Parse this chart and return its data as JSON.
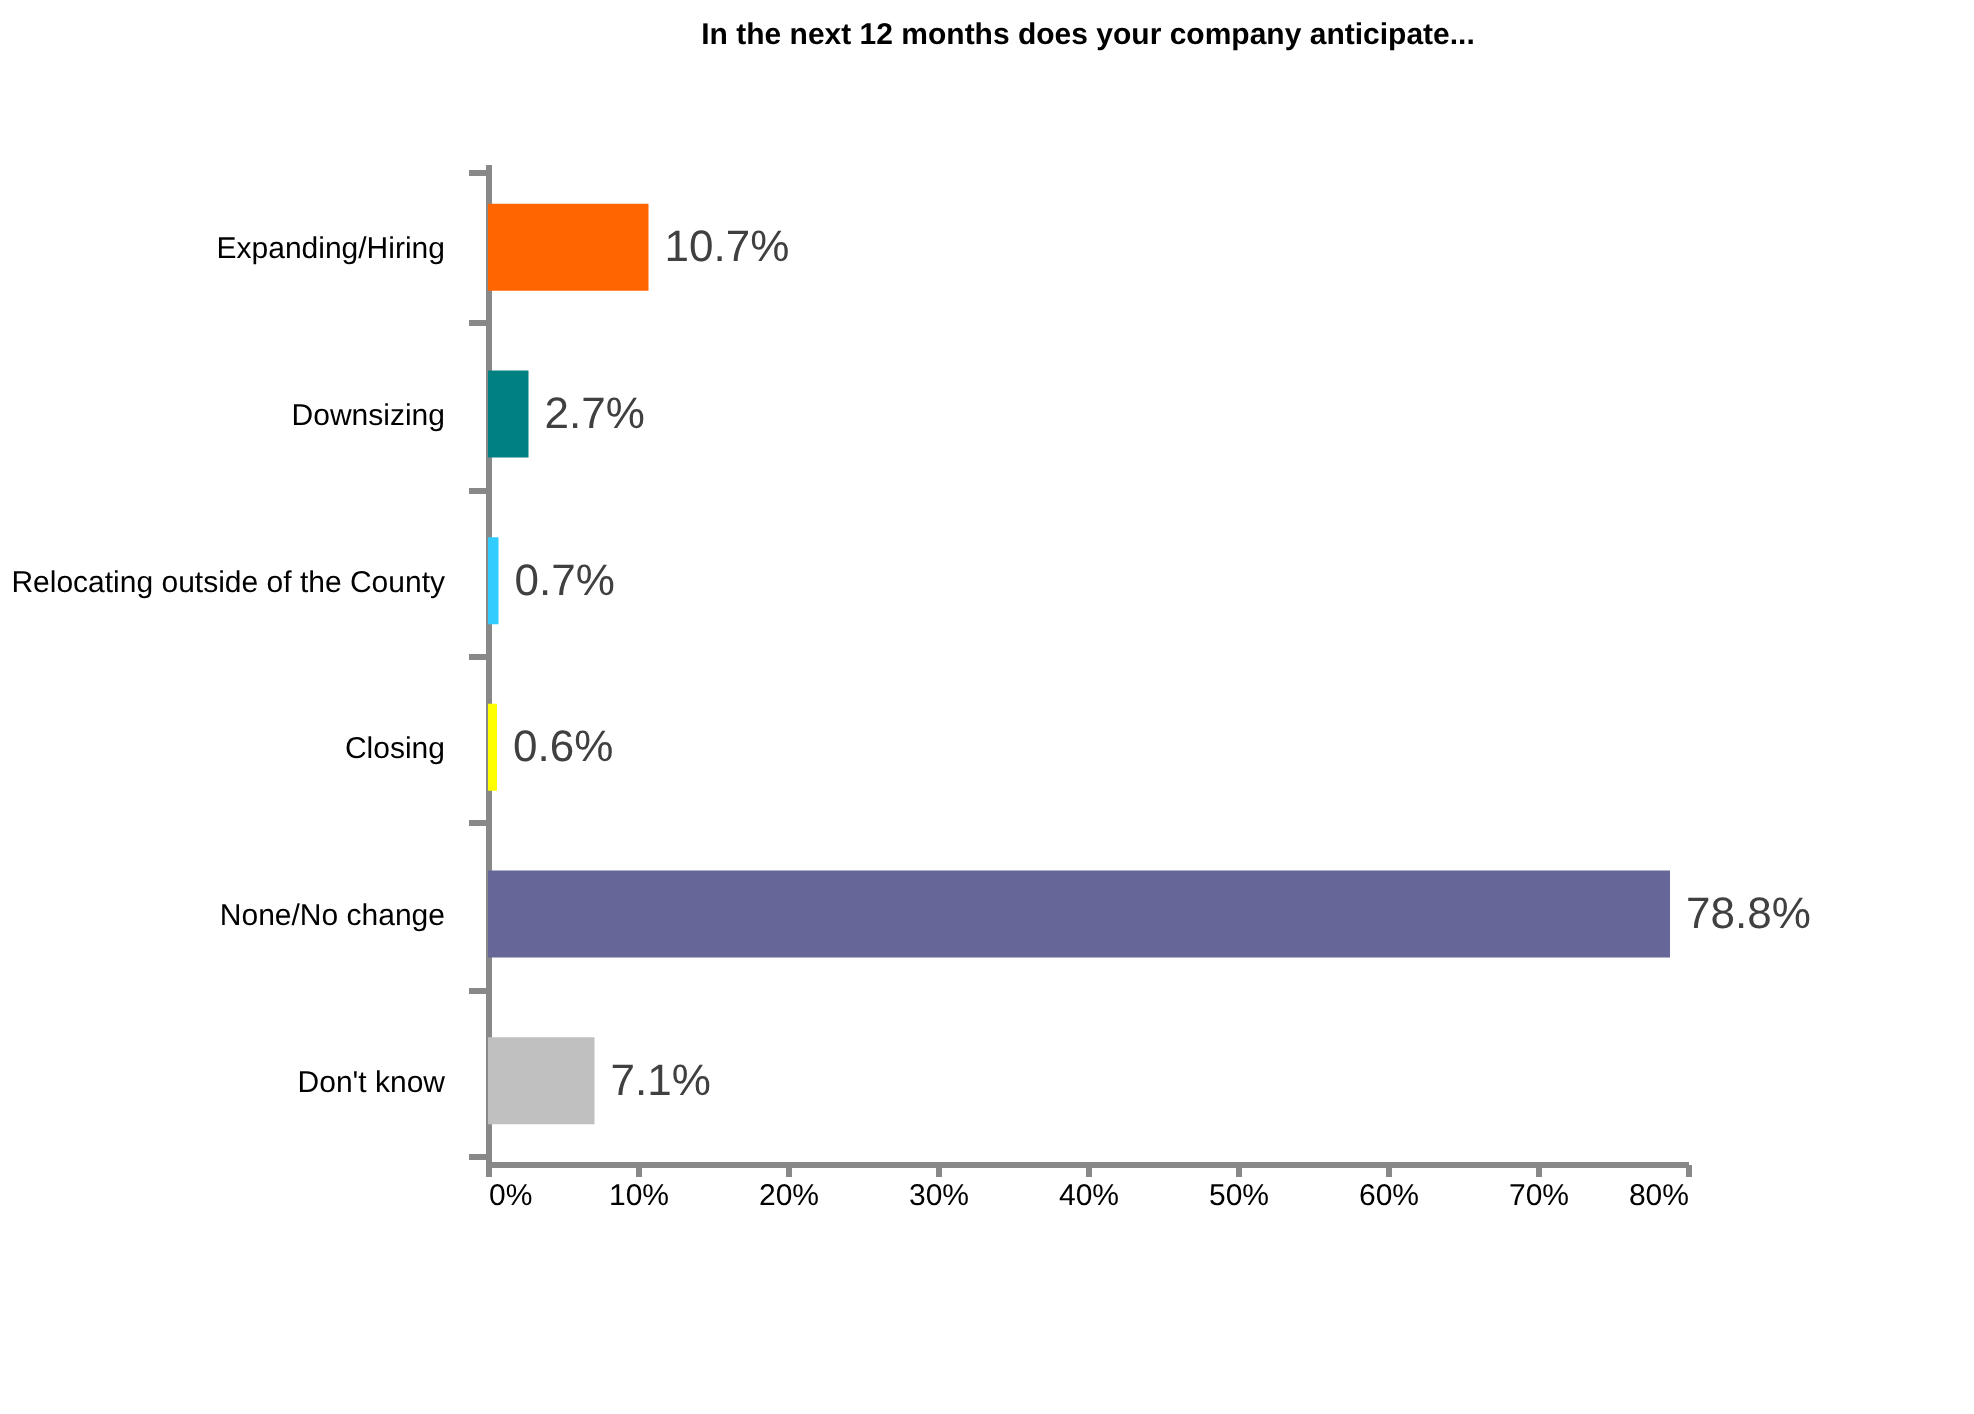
{
  "chart_data": {
    "type": "bar",
    "orientation": "horizontal",
    "title": "In the next 12 months does your company anticipate...",
    "categories": [
      "Expanding/Hiring",
      "Downsizing",
      "Relocating outside of the County",
      "Closing",
      "None/No change",
      "Don't know"
    ],
    "values": [
      10.7,
      2.7,
      0.7,
      0.6,
      78.8,
      7.1
    ],
    "colors": [
      "#ff6600",
      "#008080",
      "#33ccff",
      "#ffff00",
      "#666699",
      "#c0c0c0"
    ],
    "value_labels": [
      "10.7%",
      "2.7%",
      "0.7%",
      "0.6%",
      "78.8%",
      "7.1%"
    ],
    "xlim": [
      0,
      80
    ],
    "xticks": [
      {
        "value": 0,
        "label": "0%"
      },
      {
        "value": 10,
        "label": "10%"
      },
      {
        "value": 20,
        "label": "20%"
      },
      {
        "value": 30,
        "label": "30%"
      },
      {
        "value": 40,
        "label": "40%"
      },
      {
        "value": 50,
        "label": "50%"
      },
      {
        "value": 60,
        "label": "60%"
      },
      {
        "value": 70,
        "label": "70%"
      },
      {
        "value": 80,
        "label": "80%"
      }
    ],
    "grid": false,
    "legend": false
  }
}
